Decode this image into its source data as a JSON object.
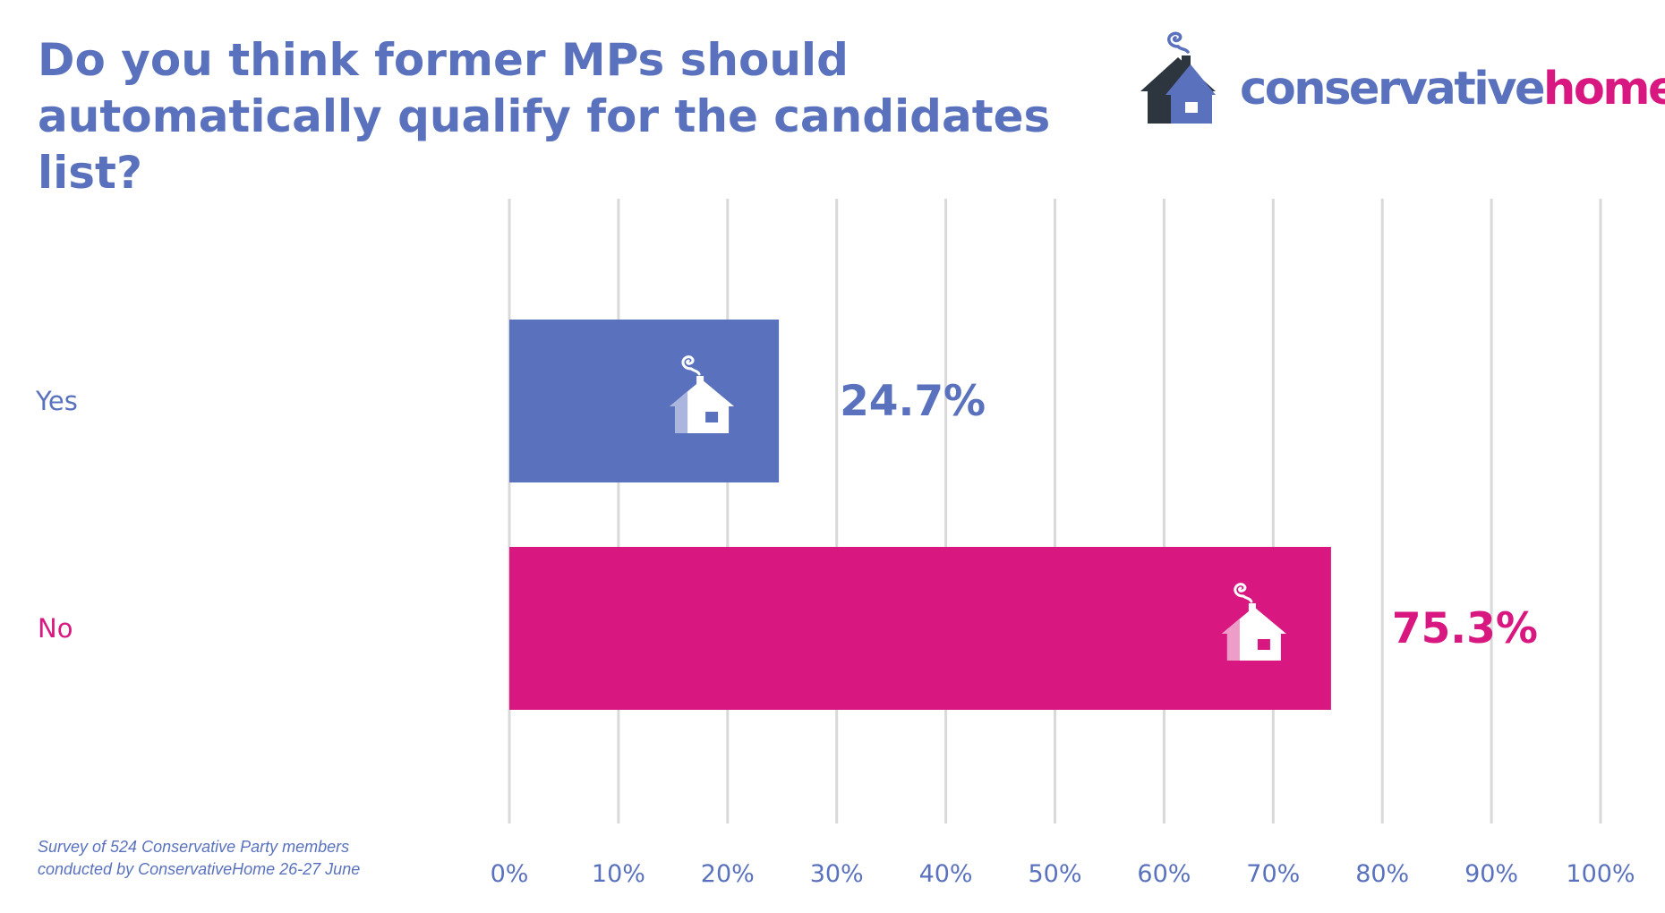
{
  "title": "Do you think former MPs should automatically qualify for the candidates list?",
  "logo": {
    "text_part1": "conservative",
    "text_part2": "home",
    "icon": "house-with-smoke-icon"
  },
  "colors": {
    "blue": "#5a72bd",
    "magenta": "#d81880",
    "grid": "#d9d9d9",
    "dark": "#2d353e"
  },
  "footnote": {
    "line1": "Survey of 524 Conservative Party members",
    "line2": "conducted by ConservativeHome 26-27 June"
  },
  "chart_data": {
    "type": "bar",
    "orientation": "horizontal",
    "categories": [
      "Yes",
      "No"
    ],
    "values": [
      24.7,
      75.3
    ],
    "value_labels": [
      "24.7%",
      "75.3%"
    ],
    "colors": [
      "#5a72bd",
      "#d81880"
    ],
    "xlim": [
      0,
      100
    ],
    "xticks": [
      0,
      10,
      20,
      30,
      40,
      50,
      60,
      70,
      80,
      90,
      100
    ],
    "xtick_labels": [
      "0%",
      "10%",
      "20%",
      "30%",
      "40%",
      "50%",
      "60%",
      "70%",
      "80%",
      "90%",
      "100%"
    ],
    "grid": "vertical",
    "bar_icon": "house-icon"
  }
}
